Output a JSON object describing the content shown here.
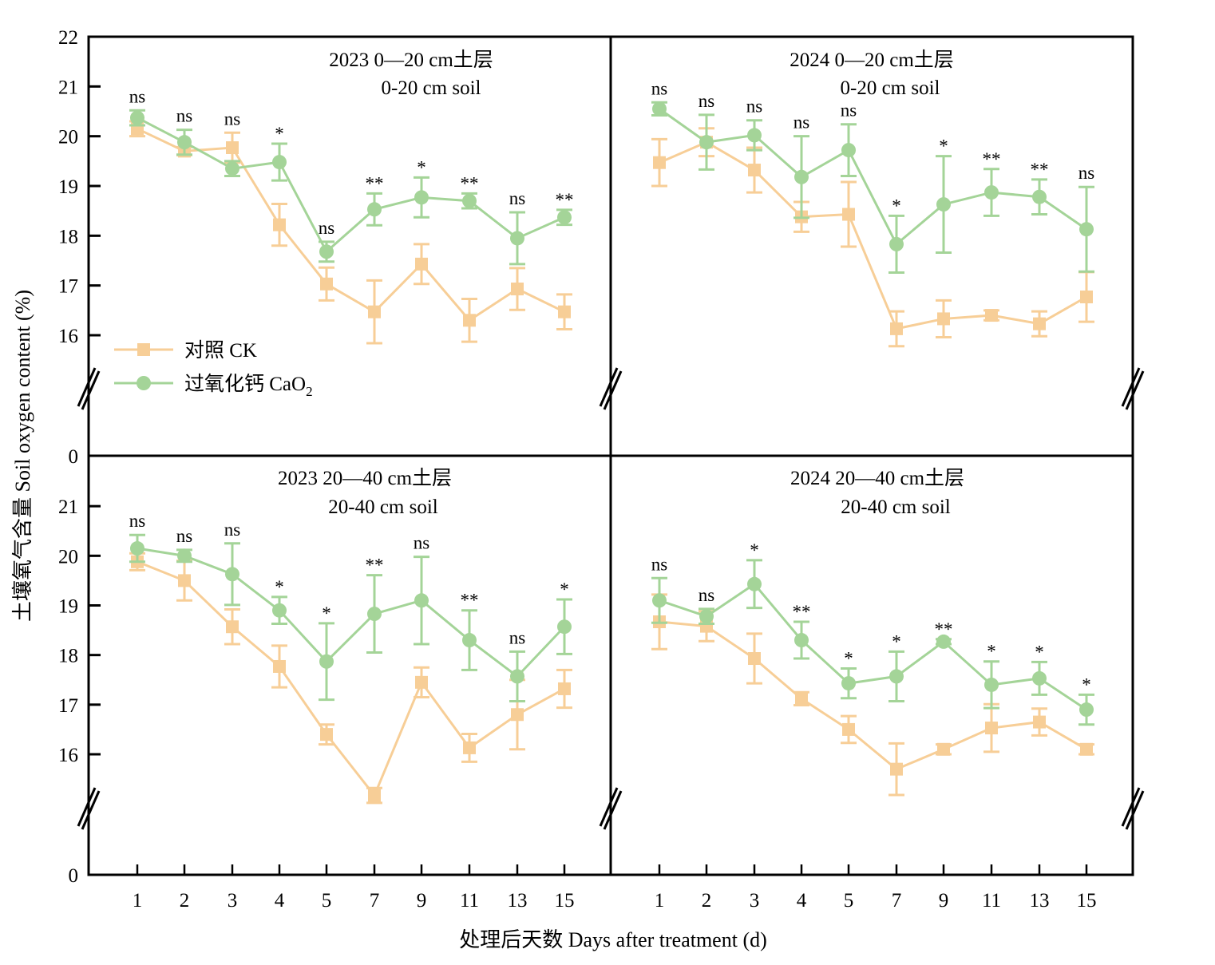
{
  "chart_data": {
    "type": "line",
    "figure": {
      "ylabel": "土壤氧气含量 Soil oxygen content (%)",
      "xlabel": "处理后天数 Days after treatment (d)",
      "x_categories": [
        "1",
        "2",
        "3",
        "4",
        "5",
        "7",
        "9",
        "11",
        "13",
        "15"
      ],
      "y_axis_break": true,
      "y_break_bottom_label": "0"
    },
    "legend": {
      "placement": "lower-left of top-left panel",
      "entries": [
        {
          "key": "ck",
          "label": "对照 CK",
          "marker": "square",
          "color": "#F7CE97"
        },
        {
          "key": "cao2",
          "label_main": "过氧化钙 CaO",
          "label_sub": "2",
          "marker": "circle",
          "color": "#A4D498"
        }
      ]
    },
    "panels": [
      {
        "id": "2023-0-20",
        "title_line1": "2023  0—20 cm土层",
        "title_line2": "0-20 cm soil",
        "yticks": [
          "22",
          "21",
          "20",
          "19",
          "18",
          "17",
          "16"
        ],
        "ytick_values": [
          22,
          21,
          20,
          19,
          18,
          17,
          16
        ],
        "ylim": [
          15,
          22
        ],
        "series": [
          {
            "key": "ck",
            "name": "对照 CK",
            "values": [
              20.15,
              19.7,
              19.77,
              18.22,
              17.03,
              16.47,
              17.43,
              16.3,
              16.93,
              16.47
            ],
            "errors": [
              0.15,
              0.08,
              0.3,
              0.42,
              0.33,
              0.63,
              0.4,
              0.43,
              0.42,
              0.35
            ]
          },
          {
            "key": "cao2",
            "name": "过氧化钙 CaO2",
            "values": [
              20.37,
              19.88,
              19.35,
              19.48,
              17.68,
              18.53,
              18.77,
              18.7,
              17.95,
              18.37
            ],
            "errors": [
              0.15,
              0.25,
              0.15,
              0.37,
              0.2,
              0.32,
              0.4,
              0.15,
              0.52,
              0.15
            ]
          }
        ],
        "significance": [
          "ns",
          "ns",
          "ns",
          "*",
          "ns",
          "**",
          "*",
          "**",
          "ns",
          "**"
        ]
      },
      {
        "id": "2024-0-20",
        "title_line1": "2024  0—20 cm土层",
        "title_line2": "0-20 cm soil",
        "yticks": [],
        "ytick_values": [],
        "ylim": [
          15,
          22
        ],
        "series": [
          {
            "key": "ck",
            "name": "对照 CK",
            "values": [
              19.47,
              19.88,
              19.32,
              18.38,
              18.43,
              16.13,
              16.33,
              16.4,
              16.23,
              16.77
            ],
            "errors": [
              0.47,
              0.28,
              0.45,
              0.3,
              0.65,
              0.35,
              0.37,
              0.1,
              0.25,
              0.5
            ]
          },
          {
            "key": "cao2",
            "name": "过氧化钙 CaO2",
            "values": [
              20.55,
              19.88,
              20.02,
              19.18,
              19.72,
              17.83,
              18.63,
              18.87,
              18.78,
              18.13
            ],
            "errors": [
              0.13,
              0.55,
              0.3,
              0.82,
              0.52,
              0.57,
              0.97,
              0.47,
              0.35,
              0.85
            ]
          }
        ],
        "significance": [
          "ns",
          "ns",
          "ns",
          "ns",
          "ns",
          "*",
          "*",
          "**",
          "**",
          "ns"
        ]
      },
      {
        "id": "2023-20-40",
        "title_line1": "2023  20—40 cm土层",
        "title_line2": "20-40 cm soil",
        "yticks": [
          "21",
          "20",
          "19",
          "18",
          "17",
          "16"
        ],
        "ytick_values": [
          21,
          20,
          19,
          18,
          17,
          16
        ],
        "ylim": [
          15,
          22
        ],
        "series": [
          {
            "key": "ck",
            "name": "对照 CK",
            "values": [
              19.88,
              19.5,
              18.57,
              17.77,
              16.4,
              15.17,
              17.45,
              16.13,
              16.8,
              17.32
            ],
            "errors": [
              0.17,
              0.4,
              0.35,
              0.42,
              0.2,
              0.15,
              0.3,
              0.28,
              0.7,
              0.38
            ]
          },
          {
            "key": "cao2",
            "name": "过氧化钙 CaO2",
            "values": [
              20.15,
              20.0,
              19.63,
              18.9,
              17.87,
              18.83,
              19.1,
              18.3,
              17.57,
              18.57
            ],
            "errors": [
              0.27,
              0.12,
              0.62,
              0.27,
              0.77,
              0.78,
              0.88,
              0.6,
              0.5,
              0.55
            ]
          }
        ],
        "significance": [
          "ns",
          "ns",
          "ns",
          "*",
          "*",
          "**",
          "ns",
          "**",
          "ns",
          "*"
        ]
      },
      {
        "id": "2024-20-40",
        "title_line1": "2024  20—40 cm土层",
        "title_line2": "20-40 cm soil",
        "yticks": [],
        "ytick_values": [],
        "ylim": [
          15,
          22
        ],
        "series": [
          {
            "key": "ck",
            "name": "对照 CK",
            "values": [
              18.67,
              18.58,
              17.93,
              17.12,
              16.5,
              15.7,
              16.1,
              16.53,
              16.65,
              16.1
            ],
            "errors": [
              0.55,
              0.3,
              0.5,
              0.13,
              0.27,
              0.52,
              0.1,
              0.48,
              0.27,
              0.1
            ]
          },
          {
            "key": "cao2",
            "name": "过氧化钙 CaO2",
            "values": [
              19.1,
              18.78,
              19.43,
              18.3,
              17.43,
              17.57,
              18.27,
              17.4,
              17.53,
              16.9
            ],
            "errors": [
              0.45,
              0.15,
              0.48,
              0.37,
              0.3,
              0.5,
              0.05,
              0.47,
              0.33,
              0.3
            ]
          }
        ],
        "significance": [
          "ns",
          "ns",
          "*",
          "**",
          "*",
          "*",
          "**",
          "*",
          "*",
          "*"
        ]
      }
    ]
  }
}
